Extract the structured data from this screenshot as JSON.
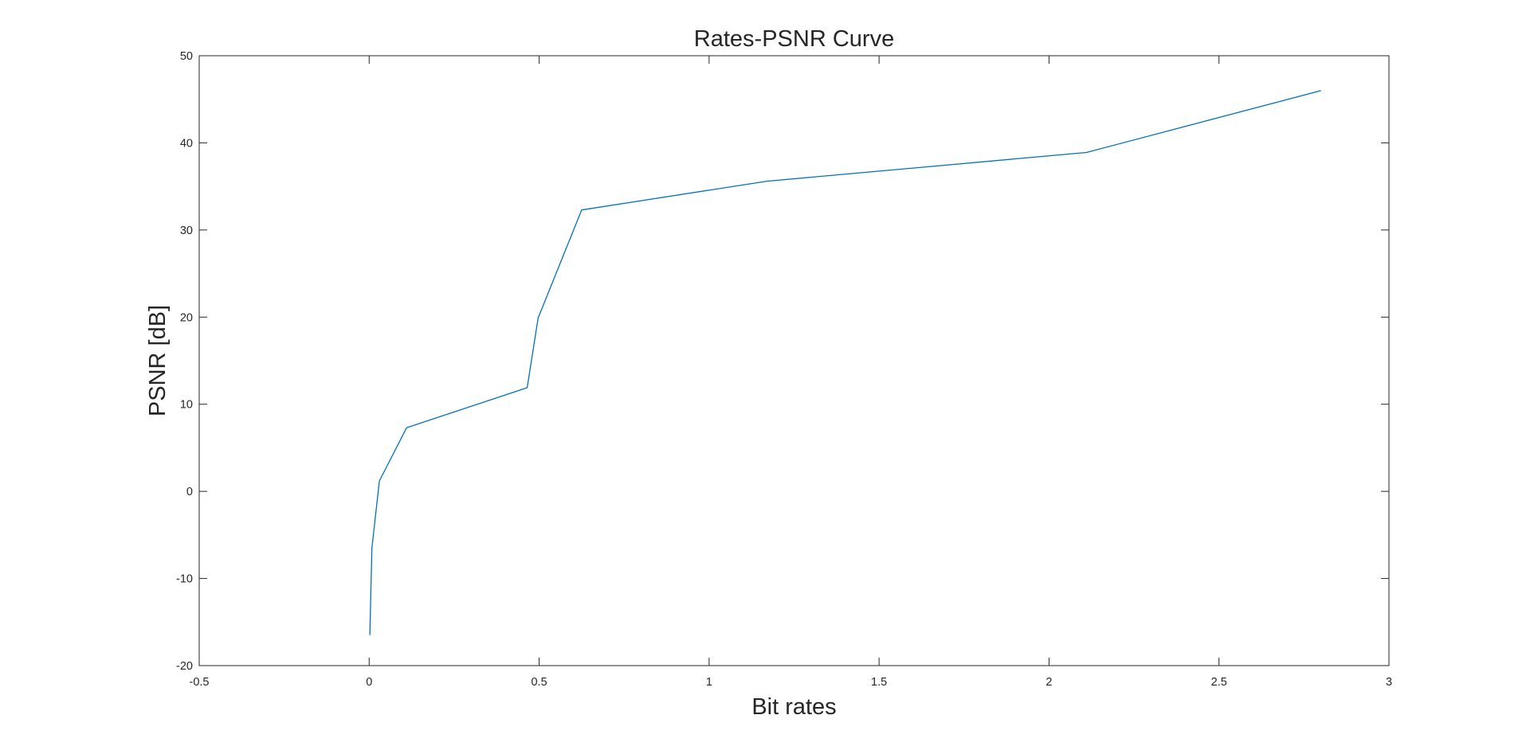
{
  "chart_data": {
    "type": "line",
    "title": "Rates-PSNR Curve",
    "xlabel": "Bit rates",
    "ylabel": "PSNR [dB]",
    "xlim": [
      -0.5,
      3
    ],
    "ylim": [
      -20,
      50
    ],
    "xticks": [
      "-0.5",
      "0",
      "0.5",
      "1",
      "1.5",
      "2",
      "2.5",
      "3"
    ],
    "yticks": [
      "-20",
      "-10",
      "0",
      "10",
      "20",
      "30",
      "40",
      "50"
    ],
    "xtick_values": [
      -0.5,
      0,
      0.5,
      1,
      1.5,
      2,
      2.5,
      3
    ],
    "ytick_values": [
      -20,
      -10,
      0,
      10,
      20,
      30,
      40,
      50
    ],
    "grid": false,
    "box": true,
    "series": [
      {
        "color": "#0072BD",
        "x": [
          0.002,
          0.008,
          0.03,
          0.11,
          0.465,
          0.497,
          0.625,
          1.17,
          2.11,
          2.8
        ],
        "y": [
          -16.5,
          -6.5,
          1.2,
          7.3,
          11.9,
          19.9,
          32.3,
          35.6,
          38.9,
          46.0
        ]
      }
    ]
  }
}
